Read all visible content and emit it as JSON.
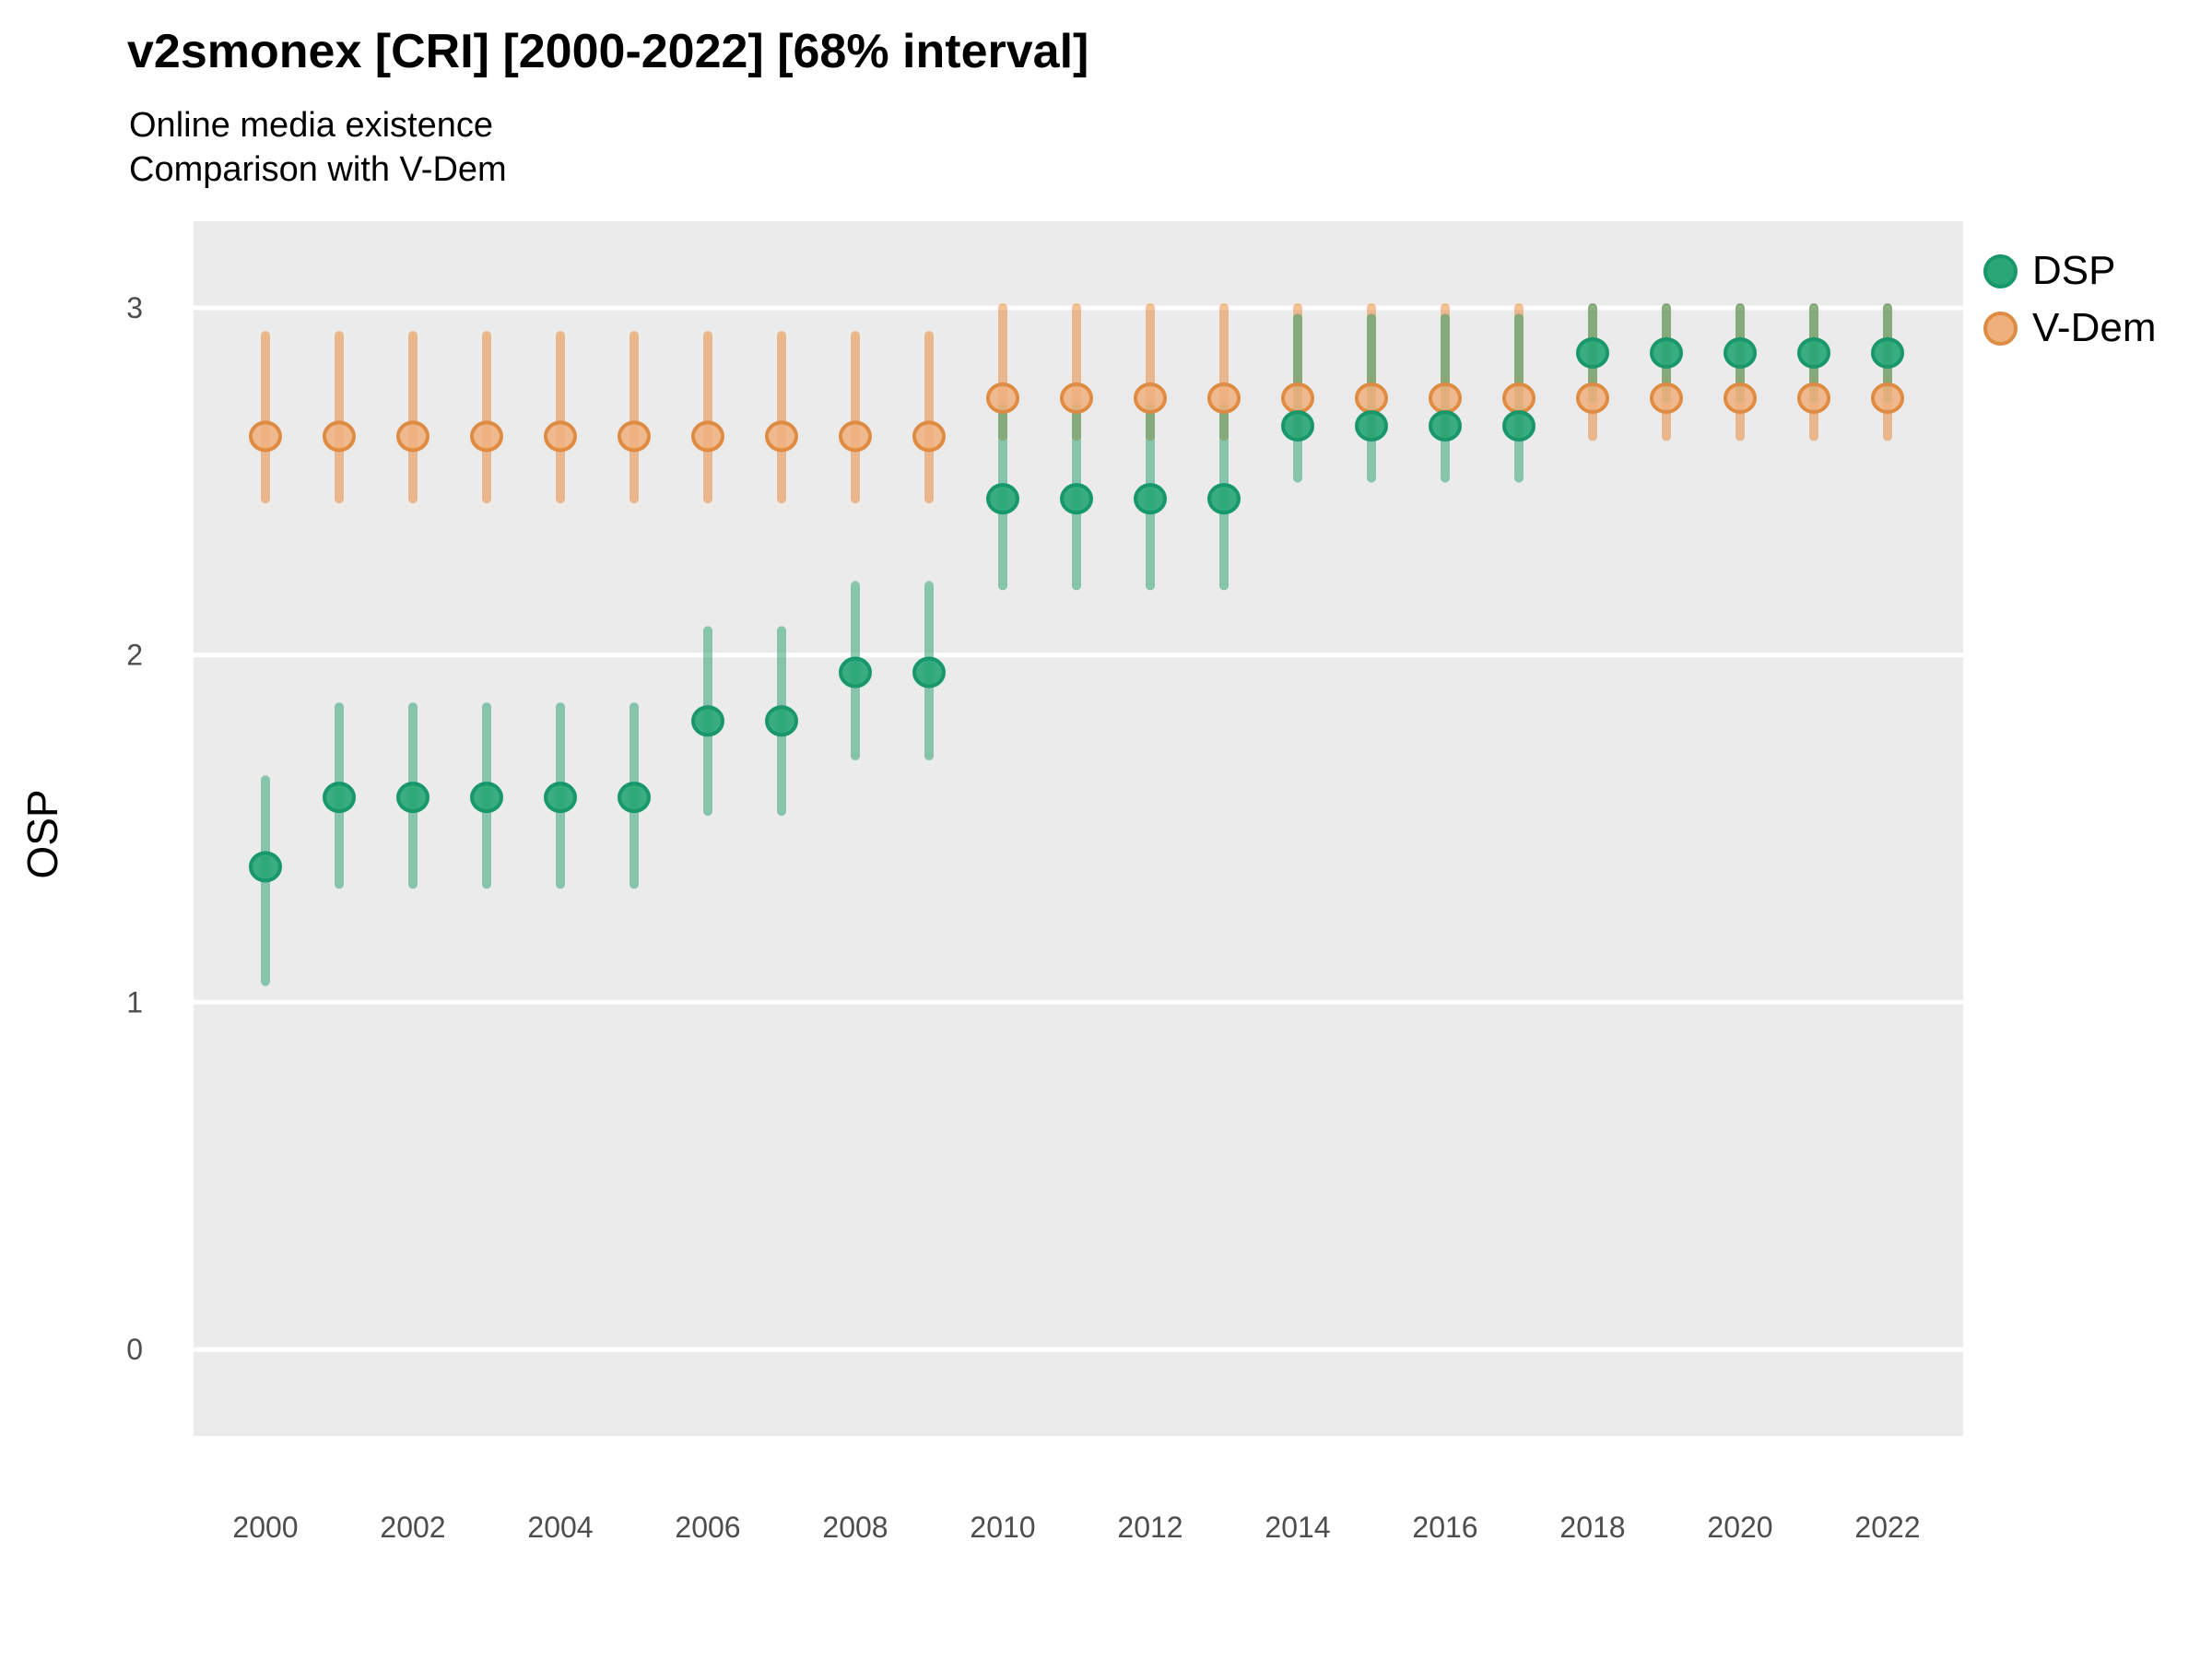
{
  "header": {
    "title": "v2smonex [CRI] [2000-2022] [68% interval]",
    "subtitle_line1": "Online media existence",
    "subtitle_line2": "Comparison with V-Dem"
  },
  "legend": {
    "items": [
      {
        "label": "DSP",
        "fill": "#2AA776",
        "stroke": "#18986A"
      },
      {
        "label": "V-Dem",
        "fill": "#F0B07D",
        "stroke": "#DE8B43"
      }
    ]
  },
  "chart_data": {
    "type": "pointrange",
    "title": "v2smonex [CRI] [2000-2022] [68% interval]",
    "subtitle": [
      "Online media existence",
      "Comparison with V-Dem"
    ],
    "interval_label": "68% interval",
    "xlabel": "",
    "ylabel": "OSP",
    "x": [
      2000,
      2001,
      2002,
      2003,
      2004,
      2005,
      2006,
      2007,
      2008,
      2009,
      2010,
      2011,
      2012,
      2013,
      2014,
      2015,
      2016,
      2017,
      2018,
      2019,
      2020,
      2021,
      2022
    ],
    "x_ticks": [
      2000,
      2002,
      2004,
      2006,
      2008,
      2010,
      2012,
      2014,
      2016,
      2018,
      2020,
      2022
    ],
    "y_ticks": [
      0,
      1,
      2,
      3
    ],
    "ylim": [
      -0.25,
      3.25
    ],
    "grid": "major-horizontal-white",
    "legend_position": "right-top",
    "panel_bg": "#EBEBEB",
    "grid_color": "#FFFFFF",
    "tick_label_color": "#4D4D4D",
    "series": [
      {
        "name": "DSP",
        "marker_fill": "#2AA776",
        "marker_stroke": "#18986A",
        "bar_color": "rgba(34,158,108,0.5)",
        "values": [
          1.39,
          1.59,
          1.59,
          1.59,
          1.59,
          1.59,
          1.81,
          1.81,
          1.95,
          1.95,
          2.45,
          2.45,
          2.45,
          2.45,
          2.66,
          2.66,
          2.66,
          2.66,
          2.87,
          2.87,
          2.87,
          2.87,
          2.87
        ],
        "lower": [
          1.06,
          1.34,
          1.34,
          1.34,
          1.34,
          1.34,
          1.55,
          1.55,
          1.71,
          1.71,
          2.2,
          2.2,
          2.2,
          2.2,
          2.51,
          2.51,
          2.51,
          2.51,
          2.74,
          2.74,
          2.74,
          2.74,
          2.74
        ],
        "upper": [
          1.64,
          1.85,
          1.85,
          1.85,
          1.85,
          1.85,
          2.07,
          2.07,
          2.2,
          2.2,
          2.71,
          2.71,
          2.71,
          2.71,
          2.97,
          2.97,
          2.97,
          2.97,
          3.0,
          3.0,
          3.0,
          3.0,
          3.0
        ]
      },
      {
        "name": "V-Dem",
        "marker_fill": "#F0B07D",
        "marker_stroke": "#DE8B43",
        "bar_color": "rgba(233,126,35,0.48)",
        "values": [
          2.63,
          2.63,
          2.63,
          2.63,
          2.63,
          2.63,
          2.63,
          2.63,
          2.63,
          2.63,
          2.74,
          2.74,
          2.74,
          2.74,
          2.74,
          2.74,
          2.74,
          2.74,
          2.74,
          2.74,
          2.74,
          2.74,
          2.74
        ],
        "lower": [
          2.45,
          2.45,
          2.45,
          2.45,
          2.45,
          2.45,
          2.45,
          2.45,
          2.45,
          2.45,
          2.63,
          2.63,
          2.63,
          2.63,
          2.63,
          2.63,
          2.63,
          2.63,
          2.63,
          2.63,
          2.63,
          2.63,
          2.63
        ],
        "upper": [
          2.92,
          2.92,
          2.92,
          2.92,
          2.92,
          2.92,
          2.92,
          2.92,
          2.92,
          2.92,
          3.0,
          3.0,
          3.0,
          3.0,
          3.0,
          3.0,
          3.0,
          3.0,
          3.0,
          3.0,
          3.0,
          3.0,
          3.0
        ]
      }
    ]
  }
}
